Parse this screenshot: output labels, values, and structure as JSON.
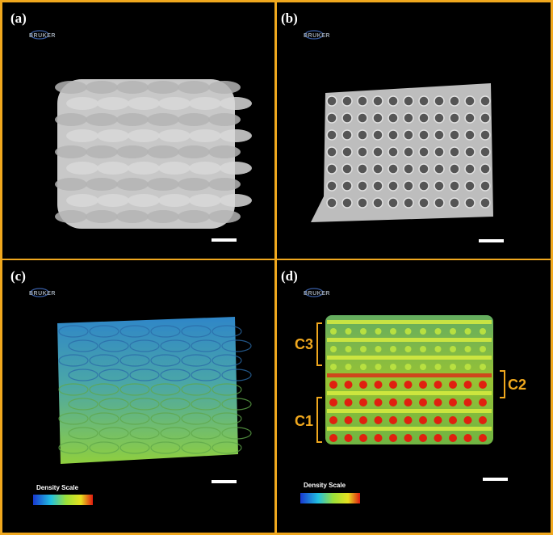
{
  "panels": [
    {
      "label": "(a)",
      "logo": "BRUKER"
    },
    {
      "label": "(b)",
      "logo": "BRUKER"
    },
    {
      "label": "(c)",
      "logo": "BRUKER",
      "scale_label": "Density Scale"
    },
    {
      "label": "(d)",
      "logo": "BRUKER",
      "scale_label": "Density Scale",
      "annotations": [
        "C3",
        "C2",
        "C1"
      ]
    }
  ]
}
